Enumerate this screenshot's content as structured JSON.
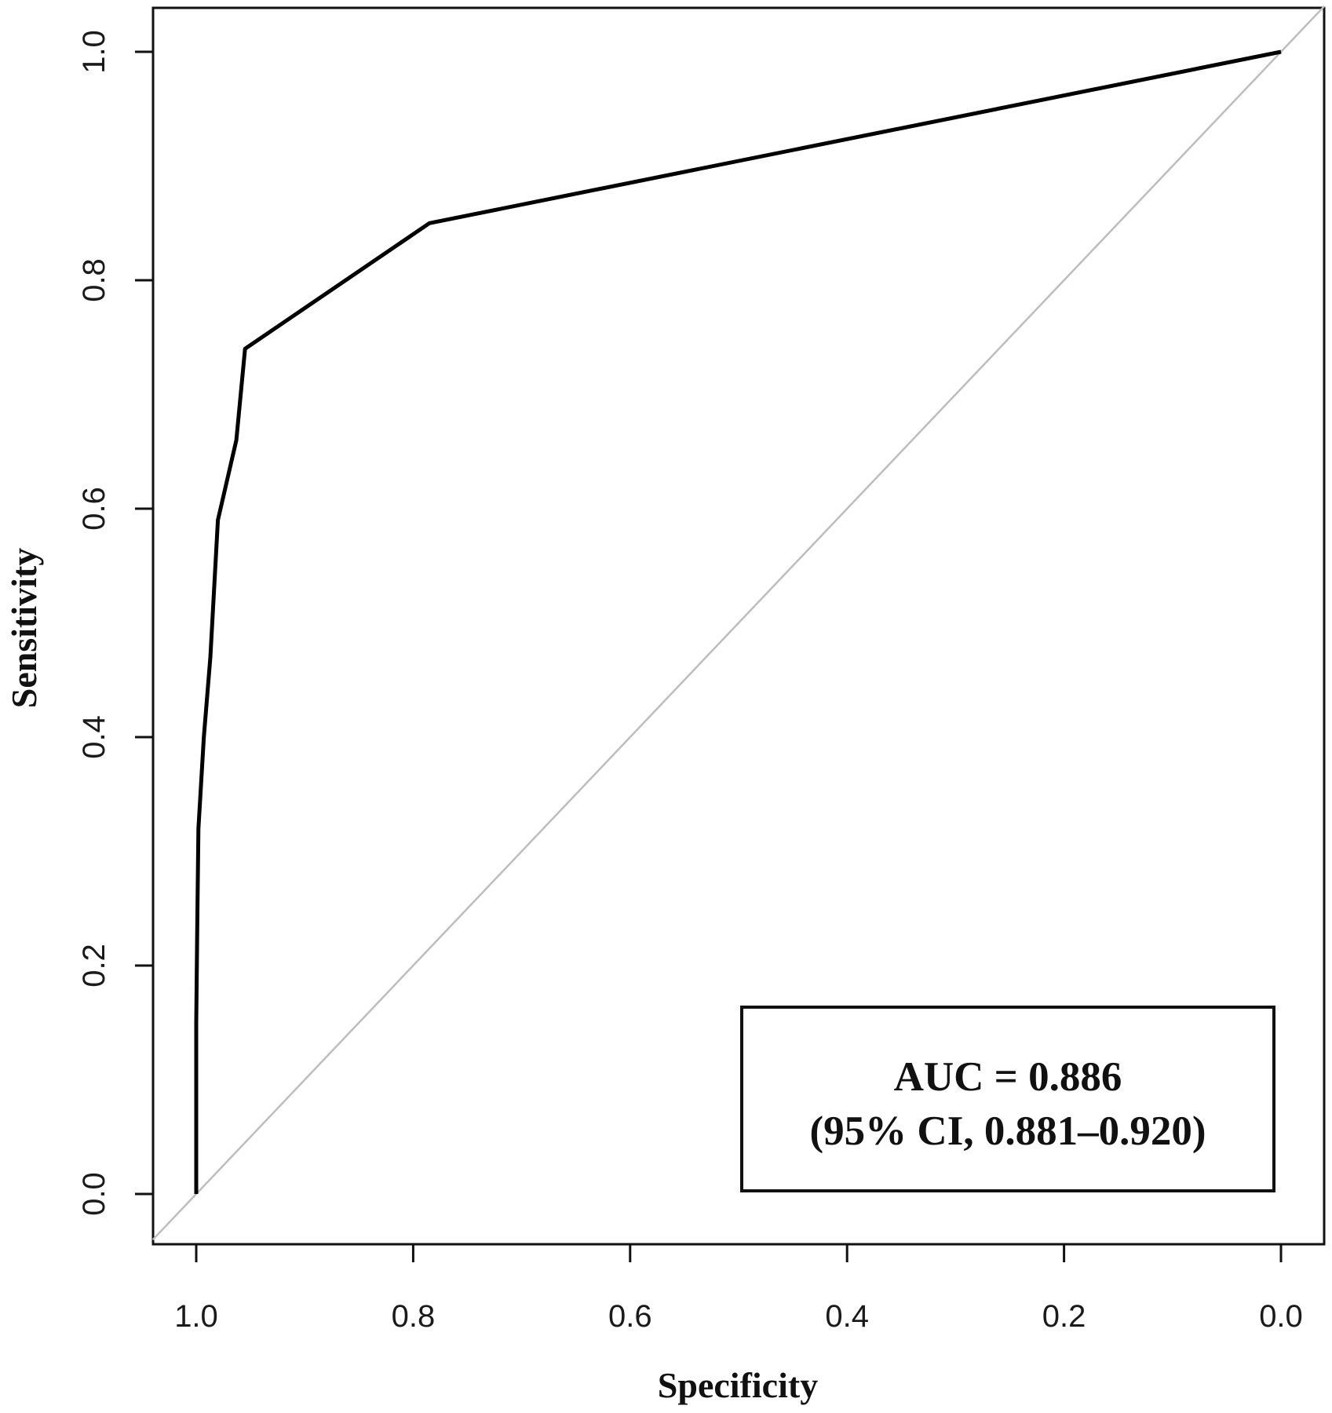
{
  "chart_data": {
    "type": "line",
    "xlabel": "Specificity",
    "ylabel": "Sensitivity",
    "xlim": [
      1.0,
      0.0
    ],
    "ylim": [
      0.0,
      1.0
    ],
    "x_reversed": true,
    "grid": false,
    "x_ticks": [
      "1.0",
      "0.8",
      "0.6",
      "0.4",
      "0.2",
      "0.0"
    ],
    "y_ticks": [
      "0.0",
      "0.2",
      "0.4",
      "0.6",
      "0.8",
      "1.0"
    ],
    "series": [
      {
        "color": "#000000",
        "points": [
          {
            "x": 1.0,
            "y": 0.0
          },
          {
            "x": 1.0,
            "y": 0.15
          },
          {
            "x": 0.999,
            "y": 0.24
          },
          {
            "x": 0.998,
            "y": 0.32
          },
          {
            "x": 0.993,
            "y": 0.4
          },
          {
            "x": 0.987,
            "y": 0.47
          },
          {
            "x": 0.98,
            "y": 0.59
          },
          {
            "x": 0.963,
            "y": 0.66
          },
          {
            "x": 0.955,
            "y": 0.74
          },
          {
            "x": 0.785,
            "y": 0.85
          },
          {
            "x": 0.0,
            "y": 1.0
          }
        ]
      }
    ],
    "reference_line": {
      "color": "#bdbdbd",
      "from": {
        "x": 1.0,
        "y": 0.0
      },
      "to": {
        "x": 0.0,
        "y": 1.0
      }
    },
    "annotation": {
      "line1": "AUC = 0.886",
      "line2": "(95% CI, 0.881–0.920)",
      "placement": "bottom-right"
    }
  }
}
